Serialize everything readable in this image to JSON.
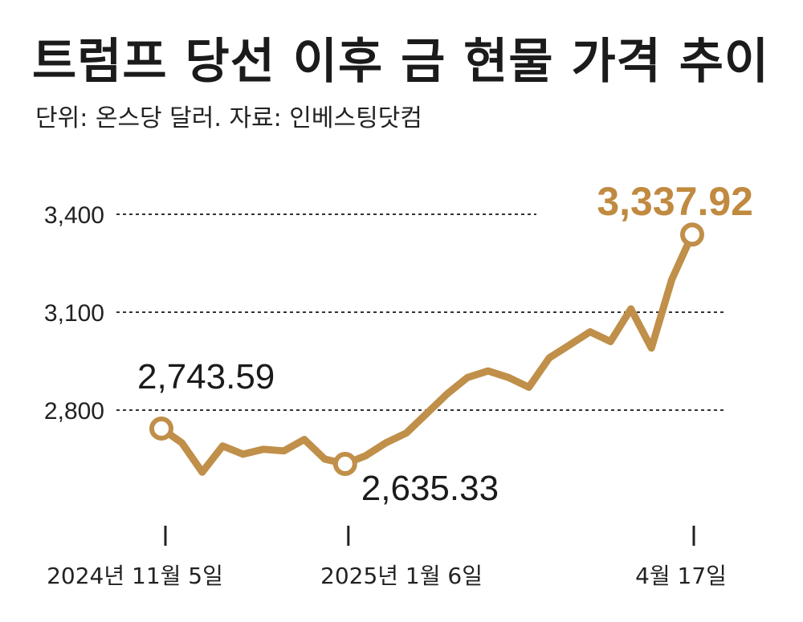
{
  "chart_data": {
    "type": "line",
    "title": "트럼프 당선 이후 금 현물 가격 추이",
    "subtitle": "단위: 온스당 달러. 자료: 인베스팅닷컴",
    "y_ticks": [
      {
        "value": 2800,
        "label": "2,800"
      },
      {
        "value": 3100,
        "label": "3,100"
      },
      {
        "value": 3400,
        "label": "3,400"
      }
    ],
    "ylim": [
      2500,
      3500
    ],
    "grid": "dashed horizontal at y ticks",
    "x_ticks": [
      {
        "index": 0,
        "label": "2024년 11월 5일"
      },
      {
        "index": 9,
        "label": "2025년 1월 6일"
      },
      {
        "index": 26,
        "label": "4월 17일"
      }
    ],
    "line_color": "#c08f49",
    "highlight_color": "#c08a40",
    "series": [
      {
        "values": [
          2743.59,
          2700,
          2610,
          2690,
          2665,
          2680,
          2675,
          2710,
          2650,
          2635.33,
          2660,
          2700,
          2730,
          2790,
          2850,
          2900,
          2920,
          2900,
          2870,
          2960,
          3000,
          3040,
          3010,
          3110,
          2990,
          3200,
          3337.92
        ]
      }
    ],
    "annotations": [
      {
        "index": 0,
        "label": "2,743.59"
      },
      {
        "index": 9,
        "label": "2,635.33"
      },
      {
        "index": 26,
        "label": "3,337.92"
      }
    ]
  }
}
